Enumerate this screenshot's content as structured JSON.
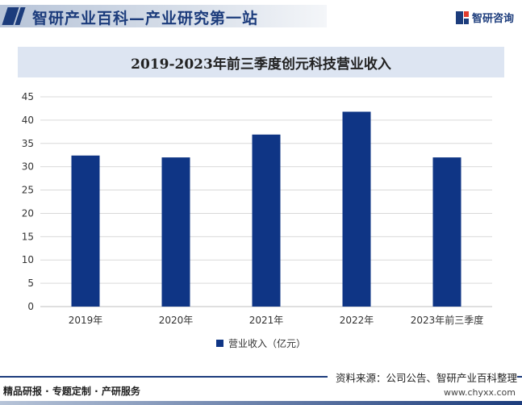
{
  "header": {
    "title": "智研产业百科—产业研究第一站",
    "brand": "智研咨询"
  },
  "chart_data": {
    "type": "bar",
    "title": "2019-2023年前三季度创元科技营业收入",
    "categories": [
      "2019年",
      "2020年",
      "2021年",
      "2022年",
      "2023年前三季度"
    ],
    "series": [
      {
        "name": "营业收入（亿元）",
        "values": [
          32.4,
          32.0,
          36.9,
          41.8,
          32.0
        ],
        "color": "#0f3585"
      }
    ],
    "ylim": [
      0,
      45
    ],
    "yticks": [
      0,
      5,
      10,
      15,
      20,
      25,
      30,
      35,
      40,
      45
    ],
    "grid": true,
    "legend": "bottom-center"
  },
  "footer": {
    "source": "资料来源：公司公告、智研产业百科整理",
    "left": "精品研报 · 专题定制 · 产研服务",
    "url": "www.chyxx.com"
  }
}
